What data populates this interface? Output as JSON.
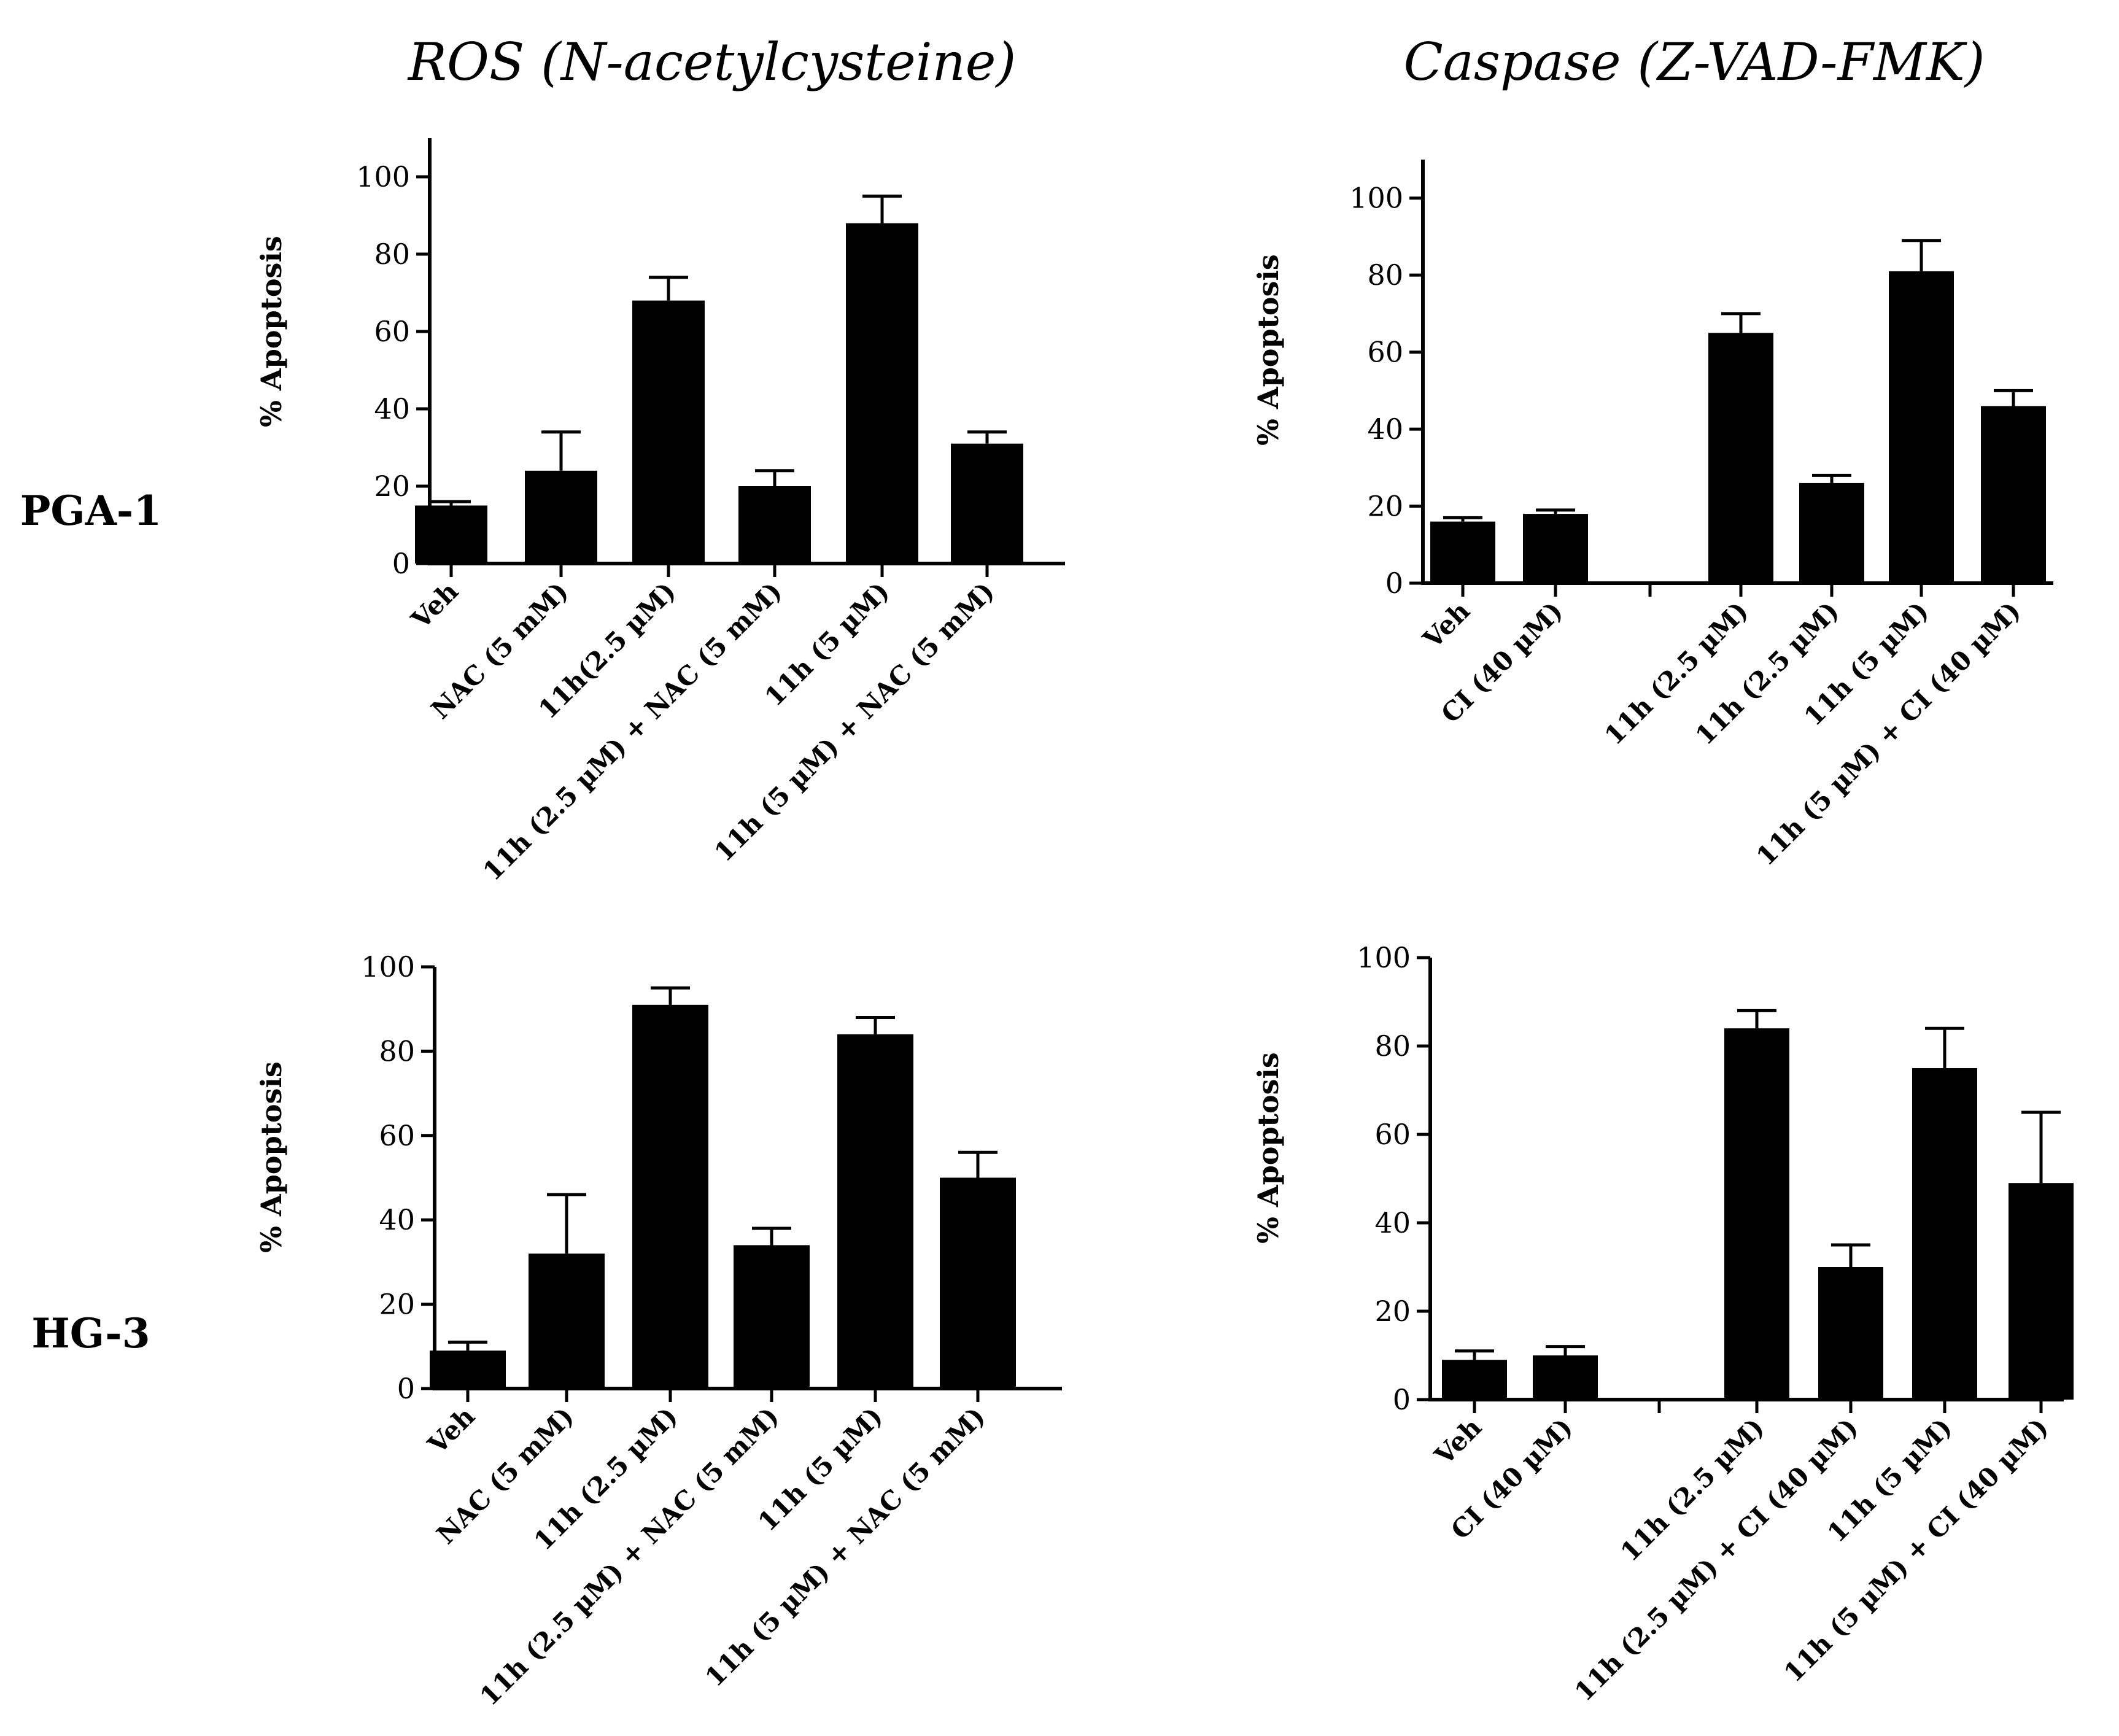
{
  "column_titles": [
    "ROS (N-acetylcysteine)",
    "Caspase (Z-VAD-FMK)"
  ],
  "row_labels": [
    "PGA-1",
    "HG-3"
  ],
  "colors": {
    "bar": "#000000",
    "axis": "#000000",
    "background": "#ffffff"
  },
  "chart_data": [
    {
      "type": "bar",
      "panel": "PGA-1 / ROS (N-acetylcysteine)",
      "ylabel": "% Apoptosis",
      "ylim": [
        0,
        110
      ],
      "yticks": [
        0,
        20,
        40,
        60,
        80,
        100
      ],
      "categories": [
        "Veh",
        "NAC (5 mM)",
        "11h(2.5 µM)",
        "11h (2.5 µM) + NAC (5 mM)",
        "11h (5 µM)",
        "11h (5 µM) + NAC (5 mM)"
      ],
      "values": [
        15,
        24,
        68,
        20,
        88,
        31
      ],
      "errors": [
        1,
        10,
        6,
        4,
        7,
        3
      ]
    },
    {
      "type": "bar",
      "panel": "PGA-1 / Caspase (Z-VAD-FMK)",
      "ylabel": "% Apoptosis",
      "ylim": [
        0,
        110
      ],
      "yticks": [
        0,
        20,
        40,
        60,
        80,
        100
      ],
      "categories": [
        "Veh",
        "CI (40 µM)",
        "",
        "11h (2.5 µM)",
        "11h (2.5 µM)",
        "11h (5 µM)",
        "11h (5 µM) + CI (40 µM)"
      ],
      "values": [
        16,
        18,
        null,
        65,
        26,
        81,
        46
      ],
      "errors": [
        1,
        1,
        null,
        5,
        2,
        8,
        4
      ]
    },
    {
      "type": "bar",
      "panel": "HG-3 / ROS (N-acetylcysteine)",
      "ylabel": "% Apoptosis",
      "ylim": [
        0,
        100
      ],
      "yticks": [
        0,
        20,
        40,
        60,
        80,
        100
      ],
      "categories": [
        "Veh",
        "NAC (5 mM)",
        "11h (2.5 µM)",
        "11h (2.5 µM) + NAC (5 mM)",
        "11h (5 µM)",
        "11h (5 µM) + NAC (5 mM)"
      ],
      "values": [
        9,
        32,
        91,
        34,
        84,
        50
      ],
      "errors": [
        2,
        14,
        4,
        4,
        4,
        6
      ]
    },
    {
      "type": "bar",
      "panel": "HG-3 / Caspase (Z-VAD-FMK)",
      "ylabel": "% Apoptosis",
      "ylim": [
        0,
        100
      ],
      "yticks": [
        0,
        20,
        40,
        60,
        80,
        100
      ],
      "categories": [
        "Veh",
        "CI (40 µM)",
        "",
        "11h (2.5 µM)",
        "11h (2.5 µM) + CI (40 µM)",
        "11h (5 µM)",
        "11h (5 µM) + CI (40 µM)"
      ],
      "values": [
        9,
        10,
        null,
        84,
        30,
        75,
        49
      ],
      "errors": [
        2,
        2,
        null,
        4,
        5,
        9,
        16
      ]
    }
  ]
}
